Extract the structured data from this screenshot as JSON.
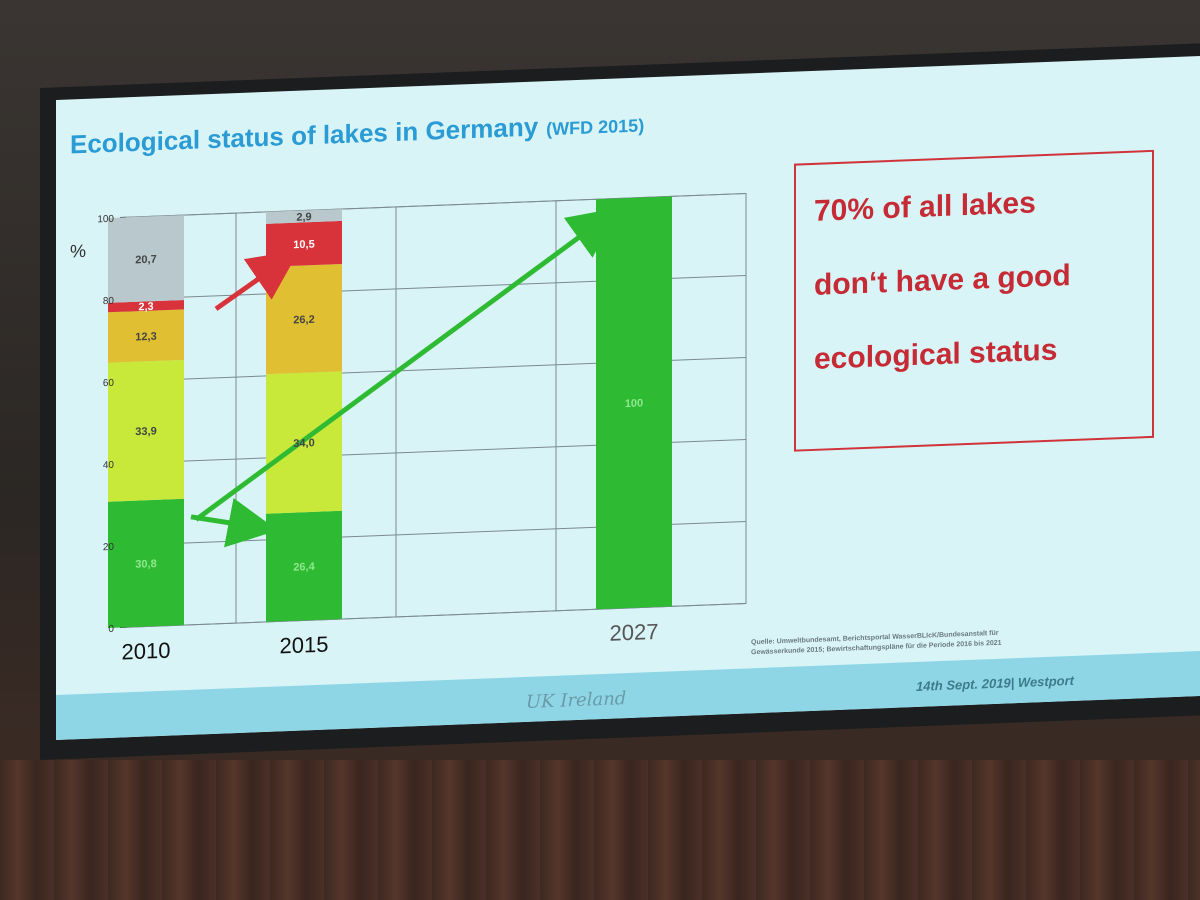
{
  "slide": {
    "title": "Ecological status of lakes in Germany",
    "title_sub": "(WFD 2015)",
    "callout_lines": [
      "70% of all lakes",
      "don‘t have a good",
      "ecological status"
    ],
    "source_line1": "Quelle: Umweltbundesamt, Berichtsportal WasserBLIcK/Bundesanstalt für",
    "source_line2": "Gewässerkunde 2015; Bewirtschaftungspläne für die Periode 2016 bis 2021",
    "footer_left": "UK Ireland",
    "footer_right": "14th Sept. 2019| Westport"
  },
  "chart_data": {
    "type": "bar",
    "stacked": true,
    "ylabel": "%",
    "ylim": [
      0,
      100
    ],
    "yticks": [
      "0",
      "20",
      "40",
      "60",
      "80",
      "100"
    ],
    "categories": [
      "2010",
      "2015",
      "2027"
    ],
    "grid": true,
    "series": [
      {
        "values": [
          30.8,
          26.4,
          100
        ],
        "labels": [
          "30,8",
          "26,4",
          "100"
        ],
        "color": "#2fba33"
      },
      {
        "values": [
          33.9,
          34.0,
          0
        ],
        "labels": [
          "33,9",
          "34,0",
          ""
        ],
        "color": "#c8e83a"
      },
      {
        "values": [
          12.3,
          26.2,
          0
        ],
        "labels": [
          "12,3",
          "26,2",
          ""
        ],
        "color": "#e0c032"
      },
      {
        "values": [
          2.3,
          10.5,
          0
        ],
        "labels": [
          "2,3",
          "10,5",
          ""
        ],
        "color": "#d8333a"
      },
      {
        "values": [
          20.7,
          2.9,
          0
        ],
        "labels": [
          "20,7",
          "2,9",
          ""
        ],
        "color": "#b8c8cc"
      }
    ]
  }
}
